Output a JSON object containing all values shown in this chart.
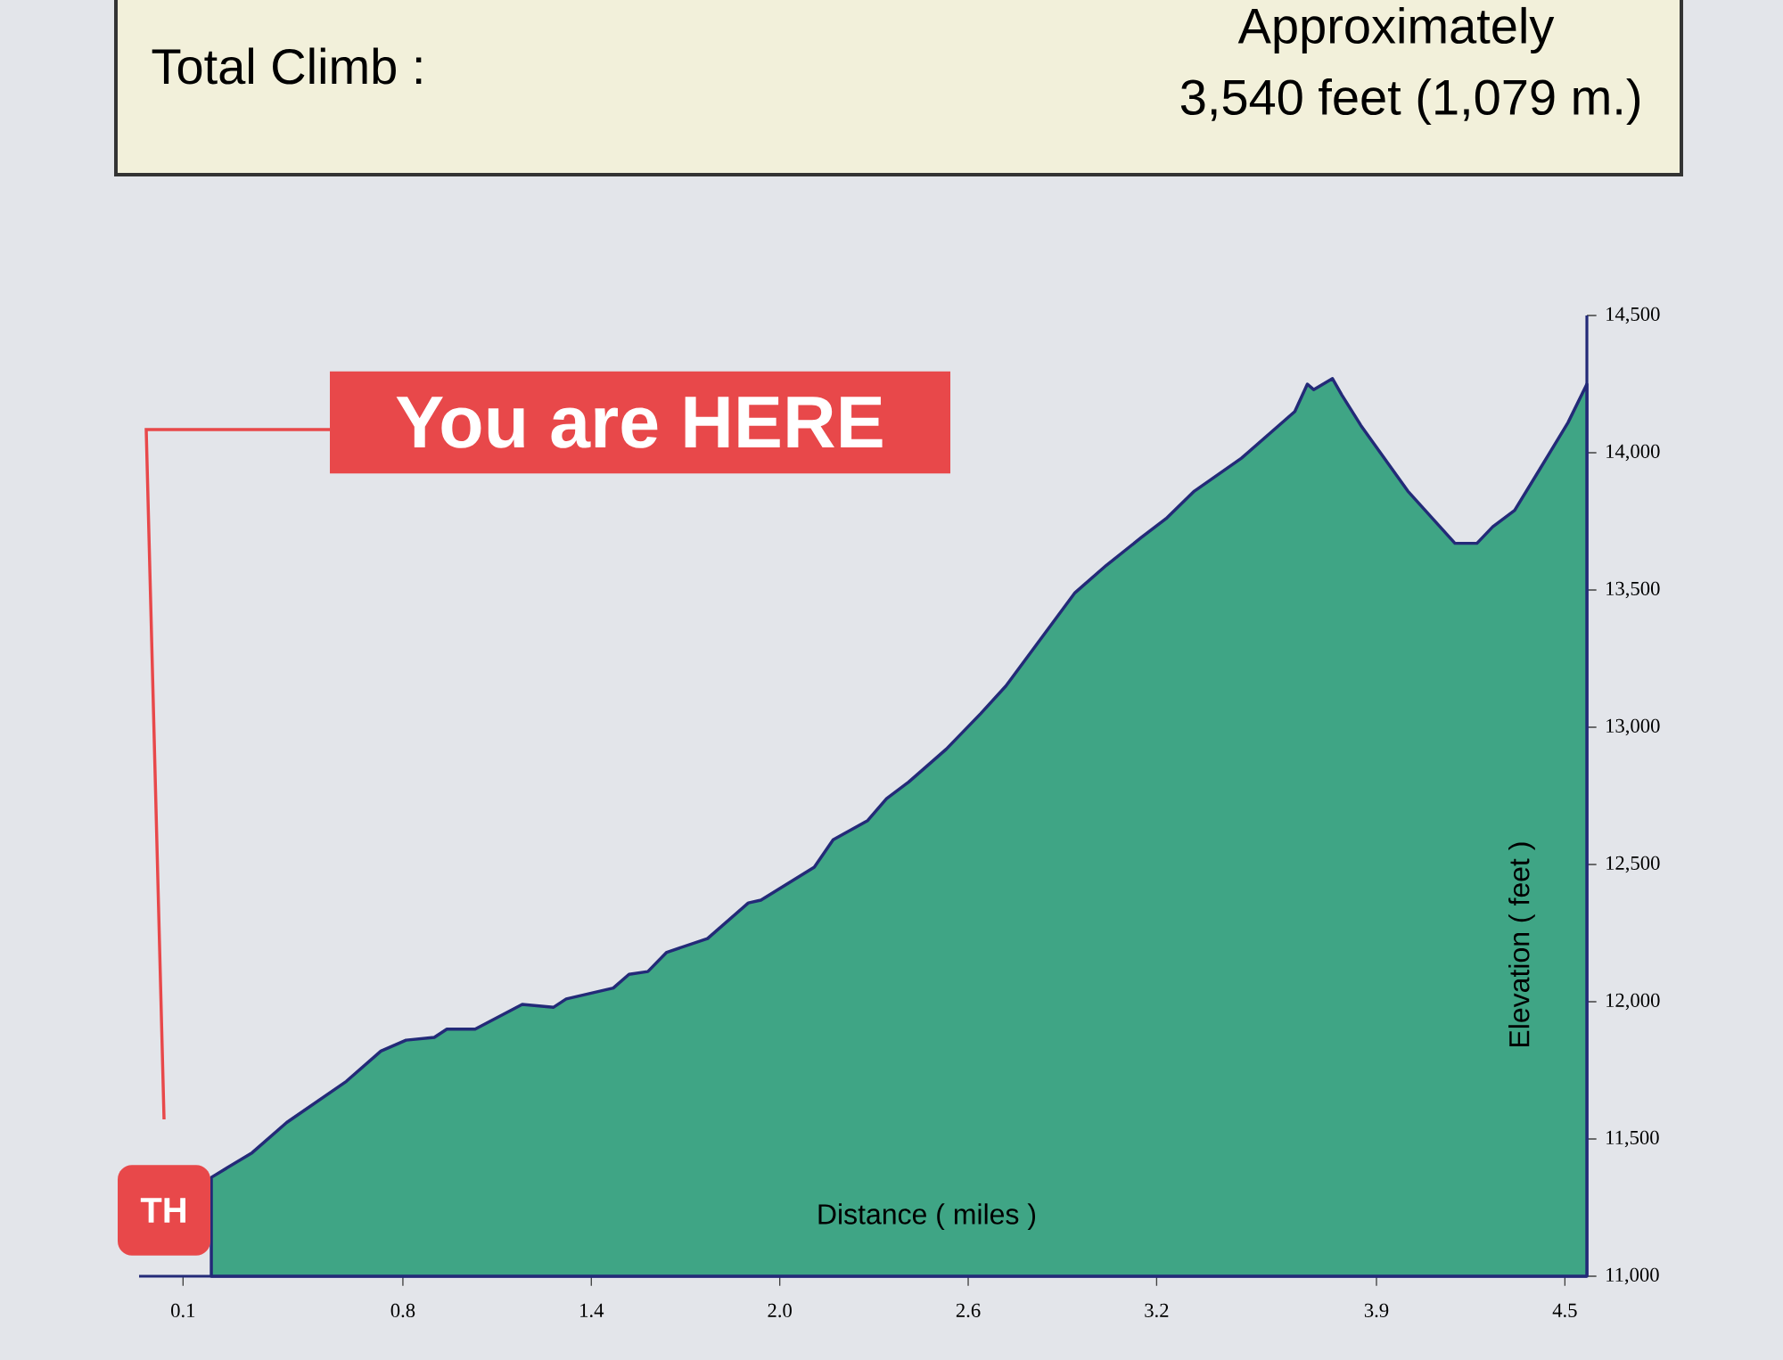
{
  "chart_data": {
    "type": "area",
    "title": "Total Climb :",
    "xlabel": "Distance ( miles )",
    "ylabel": "Elevation ( feet )",
    "annotations": [
      "Approximately",
      "3,540 feet (1,079 m.)",
      "You are HERE",
      "TH"
    ],
    "xlim": [
      -0.04,
      4.57
    ],
    "ylim": [
      11000,
      14500
    ],
    "xticks": [
      {
        "value": 0.1,
        "label": "0.1"
      },
      {
        "value": 0.8,
        "label": "0.8"
      },
      {
        "value": 1.4,
        "label": "1.4"
      },
      {
        "value": 2.0,
        "label": "2.0"
      },
      {
        "value": 2.6,
        "label": "2.6"
      },
      {
        "value": 3.2,
        "label": "3.2"
      },
      {
        "value": 3.9,
        "label": "3.9"
      },
      {
        "value": 4.5,
        "label": "4.5"
      }
    ],
    "yticks": [
      {
        "value": 11000,
        "label": "11,000"
      },
      {
        "value": 11500,
        "label": "11,500"
      },
      {
        "value": 12000,
        "label": "12,000"
      },
      {
        "value": 12500,
        "label": "12,500"
      },
      {
        "value": 13000,
        "label": "13,000"
      },
      {
        "value": 13500,
        "label": "13,500"
      },
      {
        "value": 14000,
        "label": "14,000"
      },
      {
        "value": 14500,
        "label": "14,500"
      }
    ],
    "series": [
      {
        "color": "#3fa585",
        "x": [
          0.19,
          0.32,
          0.43,
          0.62,
          0.73,
          0.81,
          0.9,
          0.94,
          1.03,
          1.18,
          1.28,
          1.32,
          1.47,
          1.52,
          1.58,
          1.64,
          1.77,
          1.9,
          1.94,
          2.11,
          2.17,
          2.28,
          2.34,
          2.41,
          2.53,
          2.64,
          2.72,
          2.94,
          3.04,
          3.15,
          3.23,
          3.32,
          3.47,
          3.64,
          3.68,
          3.7,
          3.76,
          3.79,
          3.85,
          4.0,
          4.15,
          4.22,
          4.27,
          4.34,
          4.42,
          4.51,
          4.57
        ],
        "values": [
          11360,
          11450,
          11560,
          11710,
          11820,
          11860,
          11870,
          11900,
          11900,
          11990,
          11980,
          12010,
          12050,
          12100,
          12110,
          12180,
          12230,
          12360,
          12370,
          12490,
          12590,
          12660,
          12740,
          12800,
          12920,
          13050,
          13150,
          13490,
          13590,
          13690,
          13760,
          13860,
          13980,
          14150,
          14250,
          14230,
          14270,
          14210,
          14100,
          13860,
          13670,
          13670,
          13730,
          13790,
          13940,
          14110,
          14250
        ]
      }
    ]
  }
}
